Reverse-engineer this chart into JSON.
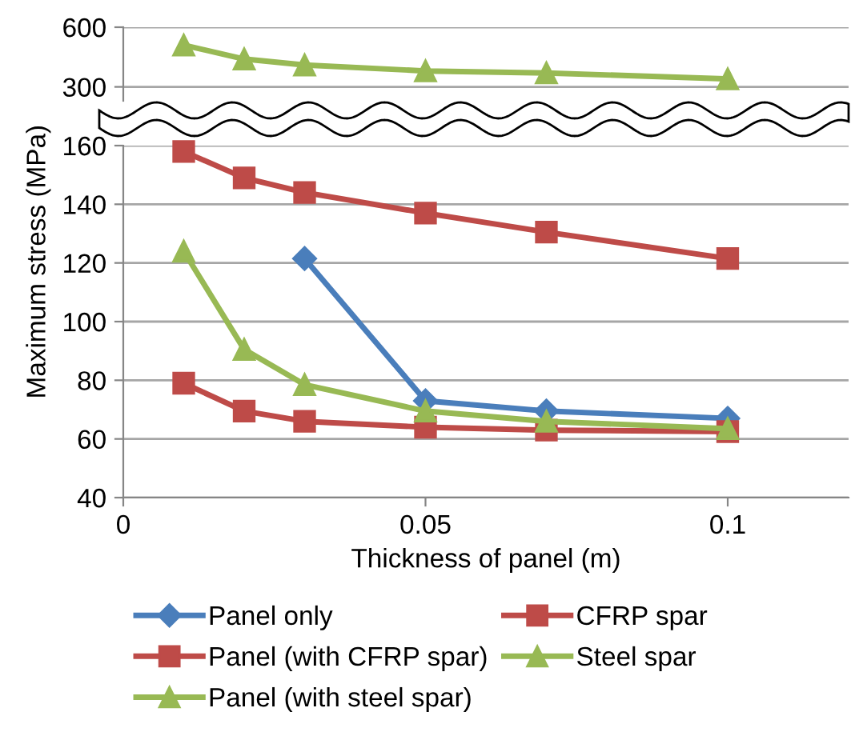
{
  "chart_data": [
    {
      "type": "line",
      "x": [
        0.01,
        0.02,
        0.03,
        0.05,
        0.07,
        0.1
      ],
      "xlim": [
        0,
        0.12
      ],
      "ylim": [
        230,
        600
      ],
      "yticks": [
        300,
        600
      ],
      "tick_labels": "y",
      "grid": "y",
      "legend": "bottom",
      "series": [
        {
          "name": "Steel spar",
          "color": "#98b954",
          "marker": "triangle",
          "values": [
            510,
            440,
            410,
            380,
            370,
            340
          ]
        }
      ]
    },
    {
      "type": "line",
      "x": [
        0.01,
        0.02,
        0.03,
        0.05,
        0.07,
        0.1
      ],
      "xlim": [
        0,
        0.12
      ],
      "xticks": [
        0,
        0.05,
        0.1
      ],
      "ylim": [
        40,
        160
      ],
      "yticks": [
        40,
        60,
        80,
        100,
        120,
        140,
        160
      ],
      "xlabel": "Thickness of panel (m)",
      "ylabel": "Maximum stress (MPa)",
      "grid": "y",
      "legend": "bottom",
      "series": [
        {
          "name": "Panel only",
          "color": "#4a7ebb",
          "marker": "diamond",
          "values": [
            null,
            null,
            121.5,
            73,
            69.5,
            67
          ]
        },
        {
          "name": "Panel (with CFRP spar)",
          "color": "#be4b48",
          "marker": "square",
          "values": [
            79,
            69.5,
            66,
            64,
            63,
            62.5
          ]
        },
        {
          "name": "Panel (with steel spar)",
          "color": "#98b954",
          "marker": "triangle",
          "values": [
            124,
            90.5,
            78.5,
            69.5,
            66,
            63.5
          ]
        },
        {
          "name": "CFRP spar",
          "color": "#be4b48",
          "marker": "square",
          "values": [
            158,
            149,
            144,
            137,
            130.5,
            121.5
          ]
        }
      ]
    }
  ]
}
